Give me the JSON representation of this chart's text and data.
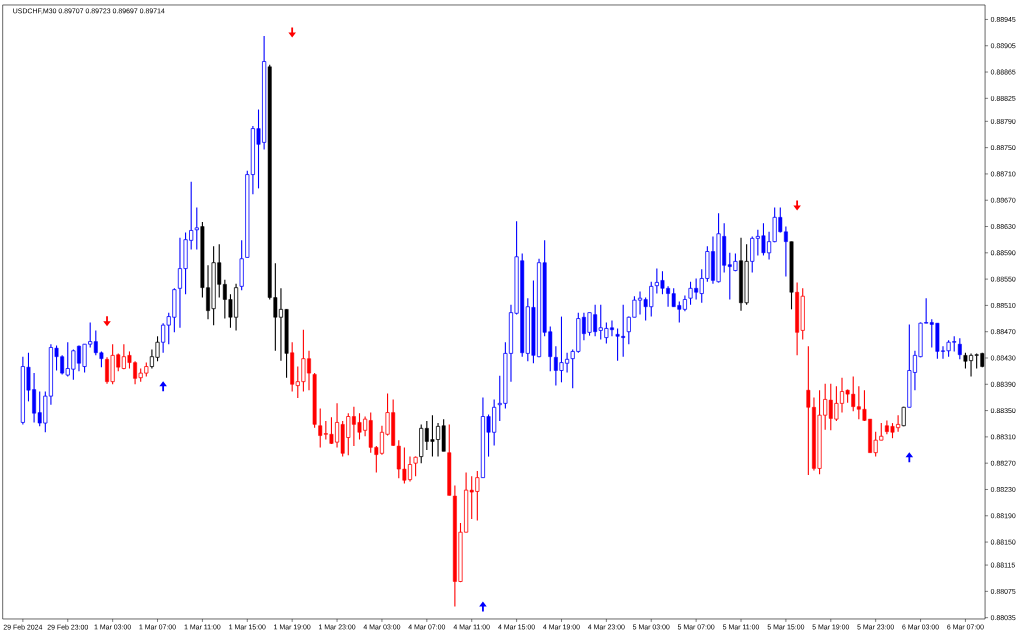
{
  "chart_data": {
    "type": "candlestick",
    "title": "USDCHF,M30  0.89707 0.89723 0.89697 0.89714",
    "categories": [
      "29 Feb 2024",
      null,
      null,
      null,
      null,
      null,
      null,
      null,
      "29 Feb 23:00",
      null,
      null,
      null,
      null,
      null,
      null,
      null,
      "1 Mar 03:00",
      null,
      null,
      null,
      null,
      null,
      null,
      null,
      "1 Mar 07:00",
      null,
      null,
      null,
      null,
      null,
      null,
      null,
      "1 Mar 11:00",
      null,
      null,
      null,
      null,
      null,
      null,
      null,
      "1 Mar 15:00",
      null,
      null,
      null,
      null,
      null,
      null,
      null,
      "1 Mar 19:00",
      null,
      null,
      null,
      null,
      null,
      null,
      null,
      "1 Mar 23:00",
      null,
      null,
      null,
      null,
      null,
      null,
      null,
      "4 Mar 03:00",
      null,
      null,
      null,
      null,
      null,
      null,
      null,
      "4 Mar 07:00",
      null,
      null,
      null,
      null,
      null,
      null,
      null,
      "4 Mar 11:00",
      null,
      null,
      null,
      null,
      null,
      null,
      null,
      "4 Mar 15:00",
      null,
      null,
      null,
      null,
      null,
      null,
      null,
      "4 Mar 19:00",
      null,
      null,
      null,
      null,
      null,
      null,
      null,
      "4 Mar 23:00",
      null,
      null,
      null,
      null,
      null,
      null,
      null,
      "5 Mar 03:00",
      null,
      null,
      null,
      null,
      null,
      null,
      null,
      "5 Mar 07:00",
      null,
      null,
      null,
      null,
      null,
      null,
      null,
      "5 Mar 11:00",
      null,
      null,
      null,
      null,
      null,
      null,
      null,
      "5 Mar 15:00",
      null,
      null,
      null,
      null,
      null,
      null,
      null,
      "5 Mar 19:00",
      null,
      null,
      null,
      null,
      null,
      null,
      null,
      "5 Mar 23:00",
      null,
      null,
      null,
      null,
      null,
      null,
      null,
      "6 Mar 03:00",
      null,
      null,
      null,
      null,
      null,
      null,
      null,
      "6 Mar 07:00",
      null,
      null,
      null
    ],
    "ohlc": [
      [
        0.88332,
        0.88432,
        0.88329,
        0.88417
      ],
      [
        0.88416,
        0.88438,
        0.88364,
        0.88381
      ],
      [
        0.88382,
        0.88407,
        0.88332,
        0.88346
      ],
      [
        0.88347,
        0.88379,
        0.88326,
        0.88331
      ],
      [
        0.88331,
        0.88379,
        0.88317,
        0.88372
      ],
      [
        0.88372,
        0.88451,
        0.88359,
        0.88446
      ],
      [
        0.88445,
        0.88449,
        0.88411,
        0.88432
      ],
      [
        0.88432,
        0.88434,
        0.88405,
        0.88407
      ],
      [
        0.88404,
        0.88454,
        0.88402,
        0.88414
      ],
      [
        0.88413,
        0.88443,
        0.88397,
        0.88441
      ],
      [
        0.88448,
        0.88449,
        0.8841,
        0.88422
      ],
      [
        0.88417,
        0.88451,
        0.88408,
        0.88451
      ],
      [
        0.88451,
        0.88484,
        0.88446,
        0.88455
      ],
      [
        0.88455,
        0.88472,
        0.88434,
        0.88438
      ],
      [
        0.88438,
        0.8844,
        0.88416,
        0.88429
      ],
      [
        0.88428,
        0.88431,
        0.88391,
        0.88394
      ],
      [
        0.88394,
        0.88451,
        0.8839,
        0.88434
      ],
      [
        0.88435,
        0.88437,
        0.8841,
        0.88416
      ],
      [
        0.88414,
        0.88451,
        0.88413,
        0.88432
      ],
      [
        0.88434,
        0.8844,
        0.88414,
        0.88423
      ],
      [
        0.88423,
        0.88425,
        0.8839,
        0.88399
      ],
      [
        0.884,
        0.88414,
        0.88394,
        0.88407
      ],
      [
        0.88407,
        0.88423,
        0.88402,
        0.88417
      ],
      [
        0.88417,
        0.88443,
        0.88414,
        0.88432
      ],
      [
        0.88431,
        0.88463,
        0.88425,
        0.88454
      ],
      [
        0.88454,
        0.88483,
        0.88438,
        0.8848
      ],
      [
        0.8848,
        0.88499,
        0.88451,
        0.88493
      ],
      [
        0.88492,
        0.88536,
        0.88469,
        0.88534
      ],
      [
        0.88536,
        0.88613,
        0.88476,
        0.88566
      ],
      [
        0.88566,
        0.88621,
        0.88527,
        0.8861
      ],
      [
        0.88609,
        0.88698,
        0.88595,
        0.88624
      ],
      [
        0.88625,
        0.88659,
        0.88595,
        0.88628
      ],
      [
        0.8863,
        0.88637,
        0.88522,
        0.88537
      ],
      [
        0.88537,
        0.88571,
        0.88489,
        0.88502
      ],
      [
        0.88505,
        0.886,
        0.8848,
        0.88575
      ],
      [
        0.88575,
        0.88603,
        0.88522,
        0.88542
      ],
      [
        0.88542,
        0.88549,
        0.8849,
        0.88519
      ],
      [
        0.88519,
        0.88527,
        0.88476,
        0.88492
      ],
      [
        0.88492,
        0.88543,
        0.88472,
        0.88537
      ],
      [
        0.88539,
        0.88609,
        0.88533,
        0.88581
      ],
      [
        0.88583,
        0.88715,
        0.88583,
        0.88709
      ],
      [
        0.88709,
        0.88783,
        0.88679,
        0.88779
      ],
      [
        0.88779,
        0.88808,
        0.88688,
        0.88755
      ],
      [
        0.88758,
        0.8892,
        0.88747,
        0.88881
      ],
      [
        0.88873,
        0.88876,
        0.88519,
        0.88522
      ],
      [
        0.88522,
        0.88574,
        0.88441,
        0.88492
      ],
      [
        0.88492,
        0.88536,
        0.88426,
        0.88504
      ],
      [
        0.88504,
        0.88504,
        0.884,
        0.88437
      ],
      [
        0.88438,
        0.88454,
        0.88379,
        0.8839
      ],
      [
        0.88388,
        0.88417,
        0.88369,
        0.88394
      ],
      [
        0.88394,
        0.88473,
        0.88379,
        0.88429
      ],
      [
        0.88429,
        0.88441,
        0.88381,
        0.88407
      ],
      [
        0.88405,
        0.88407,
        0.88324,
        0.88329
      ],
      [
        0.88327,
        0.88353,
        0.88294,
        0.88312
      ],
      [
        0.88314,
        0.88334,
        0.88306,
        0.88315
      ],
      [
        0.88314,
        0.8834,
        0.88299,
        0.883
      ],
      [
        0.88302,
        0.88361,
        0.88294,
        0.88332
      ],
      [
        0.88329,
        0.88334,
        0.8828,
        0.88285
      ],
      [
        0.88309,
        0.88346,
        0.88282,
        0.88341
      ],
      [
        0.88341,
        0.88356,
        0.88296,
        0.88329
      ],
      [
        0.88332,
        0.88346,
        0.88306,
        0.88317
      ],
      [
        0.8832,
        0.88341,
        0.88311,
        0.88337
      ],
      [
        0.88335,
        0.88347,
        0.88286,
        0.88294
      ],
      [
        0.88294,
        0.88296,
        0.88256,
        0.88283
      ],
      [
        0.88285,
        0.88327,
        0.88283,
        0.88317
      ],
      [
        0.88314,
        0.88376,
        0.88312,
        0.88347
      ],
      [
        0.88347,
        0.88367,
        0.88296,
        0.88297
      ],
      [
        0.88296,
        0.88305,
        0.88247,
        0.88261
      ],
      [
        0.88261,
        0.88294,
        0.88239,
        0.88244
      ],
      [
        0.88245,
        0.8828,
        0.88242,
        0.88268
      ],
      [
        0.8827,
        0.8828,
        0.8825,
        0.88279
      ],
      [
        0.8828,
        0.88329,
        0.8827,
        0.88323
      ],
      [
        0.88323,
        0.88334,
        0.8829,
        0.88303
      ],
      [
        0.88306,
        0.88343,
        0.8828,
        0.88303
      ],
      [
        0.88306,
        0.88331,
        0.8828,
        0.88326
      ],
      [
        0.88327,
        0.88337,
        0.88288,
        0.88288
      ],
      [
        0.88286,
        0.88329,
        0.88221,
        0.88221
      ],
      [
        0.8822,
        0.88236,
        0.88052,
        0.8809
      ],
      [
        0.8809,
        0.88179,
        0.88089,
        0.88165
      ],
      [
        0.88165,
        0.88256,
        0.88165,
        0.88229
      ],
      [
        0.88229,
        0.8825,
        0.88185,
        0.88226
      ],
      [
        0.88227,
        0.88258,
        0.88183,
        0.88248
      ],
      [
        0.88248,
        0.8837,
        0.88248,
        0.88341
      ],
      [
        0.88341,
        0.88344,
        0.8828,
        0.88317
      ],
      [
        0.88317,
        0.88367,
        0.88297,
        0.88355
      ],
      [
        0.88359,
        0.88403,
        0.88334,
        0.88361
      ],
      [
        0.88361,
        0.88454,
        0.88353,
        0.88437
      ],
      [
        0.88437,
        0.88511,
        0.88394,
        0.88499
      ],
      [
        0.88498,
        0.88638,
        0.88496,
        0.88584
      ],
      [
        0.88578,
        0.88589,
        0.88432,
        0.88438
      ],
      [
        0.88437,
        0.88521,
        0.88425,
        0.88508
      ],
      [
        0.88507,
        0.88548,
        0.88422,
        0.88434
      ],
      [
        0.88432,
        0.88581,
        0.88431,
        0.88575
      ],
      [
        0.88575,
        0.88609,
        0.88463,
        0.88469
      ],
      [
        0.8847,
        0.88478,
        0.8841,
        0.88432
      ],
      [
        0.88431,
        0.88448,
        0.88388,
        0.88411
      ],
      [
        0.88411,
        0.88493,
        0.88393,
        0.88423
      ],
      [
        0.88422,
        0.88438,
        0.88408,
        0.88428
      ],
      [
        0.88429,
        0.88443,
        0.88384,
        0.8844
      ],
      [
        0.8844,
        0.88499,
        0.88438,
        0.8849
      ],
      [
        0.88492,
        0.88499,
        0.88457,
        0.88467
      ],
      [
        0.88469,
        0.88499,
        0.88464,
        0.88499
      ],
      [
        0.88496,
        0.88511,
        0.88463,
        0.8847
      ],
      [
        0.88472,
        0.88511,
        0.88458,
        0.88476
      ],
      [
        0.88461,
        0.88484,
        0.88452,
        0.88475
      ],
      [
        0.88476,
        0.88487,
        0.88463,
        0.88473
      ],
      [
        0.88466,
        0.88475,
        0.88426,
        0.88463
      ],
      [
        0.88463,
        0.88511,
        0.88432,
        0.88461
      ],
      [
        0.8847,
        0.88493,
        0.88451,
        0.88492
      ],
      [
        0.88492,
        0.88524,
        0.88492,
        0.88518
      ],
      [
        0.88518,
        0.88531,
        0.88496,
        0.88521
      ],
      [
        0.88519,
        0.88522,
        0.88487,
        0.88508
      ],
      [
        0.88508,
        0.88546,
        0.88493,
        0.88539
      ],
      [
        0.8854,
        0.88566,
        0.88528,
        0.88545
      ],
      [
        0.88548,
        0.88562,
        0.88527,
        0.88536
      ],
      [
        0.88536,
        0.88539,
        0.88508,
        0.88528
      ],
      [
        0.88528,
        0.88536,
        0.88508,
        0.88508
      ],
      [
        0.8851,
        0.88516,
        0.88484,
        0.88504
      ],
      [
        0.88504,
        0.88525,
        0.88501,
        0.88519
      ],
      [
        0.88521,
        0.88546,
        0.88511,
        0.88536
      ],
      [
        0.88536,
        0.88551,
        0.88519,
        0.8853
      ],
      [
        0.88528,
        0.88565,
        0.88514,
        0.88551
      ],
      [
        0.88551,
        0.886,
        0.88546,
        0.88592
      ],
      [
        0.88592,
        0.88615,
        0.88543,
        0.88548
      ],
      [
        0.88546,
        0.8865,
        0.88545,
        0.88619
      ],
      [
        0.88615,
        0.88635,
        0.8856,
        0.88571
      ],
      [
        0.88572,
        0.8859,
        0.88519,
        0.88569
      ],
      [
        0.88563,
        0.88589,
        0.88562,
        0.88577
      ],
      [
        0.88578,
        0.88613,
        0.88502,
        0.88514
      ],
      [
        0.88514,
        0.88603,
        0.88511,
        0.88577
      ],
      [
        0.88577,
        0.88615,
        0.8856,
        0.88612
      ],
      [
        0.88612,
        0.88625,
        0.88586,
        0.88615
      ],
      [
        0.88616,
        0.88635,
        0.88586,
        0.8859
      ],
      [
        0.8859,
        0.88622,
        0.8858,
        0.88607
      ],
      [
        0.88607,
        0.88659,
        0.88606,
        0.88644
      ],
      [
        0.88644,
        0.88659,
        0.88621,
        0.88622
      ],
      [
        0.88622,
        0.8863,
        0.88554,
        0.88607
      ],
      [
        0.88607,
        0.88607,
        0.88504,
        0.8853
      ],
      [
        0.8853,
        0.88545,
        0.88434,
        0.88469
      ],
      [
        0.88472,
        0.88536,
        0.88458,
        0.88524
      ],
      [
        0.88381,
        0.88448,
        0.88252,
        0.88355
      ],
      [
        0.88355,
        0.8837,
        0.88259,
        0.88262
      ],
      [
        0.88262,
        0.88381,
        0.88253,
        0.88343
      ],
      [
        0.88343,
        0.88391,
        0.88321,
        0.88367
      ],
      [
        0.88366,
        0.88391,
        0.8832,
        0.88338
      ],
      [
        0.88337,
        0.88387,
        0.88334,
        0.88361
      ],
      [
        0.88361,
        0.884,
        0.88347,
        0.88379
      ],
      [
        0.88381,
        0.88382,
        0.88362,
        0.88375
      ],
      [
        0.88375,
        0.88402,
        0.88349,
        0.88356
      ],
      [
        0.88356,
        0.88387,
        0.88337,
        0.88352
      ],
      [
        0.88352,
        0.88381,
        0.88334,
        0.88335
      ],
      [
        0.88337,
        0.88337,
        0.88286,
        0.88286
      ],
      [
        0.88286,
        0.88318,
        0.8828,
        0.88305
      ],
      [
        0.88305,
        0.88331,
        0.88305,
        0.88311
      ],
      [
        0.88327,
        0.88335,
        0.88314,
        0.88318
      ],
      [
        0.88326,
        0.88331,
        0.88308,
        0.88317
      ],
      [
        0.88324,
        0.88343,
        0.88318,
        0.88329
      ],
      [
        0.88327,
        0.88356,
        0.88326,
        0.88355
      ],
      [
        0.88355,
        0.88481,
        0.88355,
        0.88411
      ],
      [
        0.88408,
        0.88441,
        0.88381,
        0.88434
      ],
      [
        0.88432,
        0.88484,
        0.88431,
        0.88483
      ],
      [
        0.88483,
        0.88521,
        0.88483,
        0.88484
      ],
      [
        0.88484,
        0.88489,
        0.88446,
        0.88481
      ],
      [
        0.88483,
        0.88483,
        0.88429,
        0.8844
      ],
      [
        0.88441,
        0.88448,
        0.88429,
        0.8844
      ],
      [
        0.88441,
        0.88457,
        0.88432,
        0.88454
      ],
      [
        0.88454,
        0.88463,
        0.8844,
        0.88455
      ],
      [
        0.88451,
        0.8846,
        0.88428,
        0.88435
      ],
      [
        0.88434,
        0.88438,
        0.88414,
        0.88425
      ],
      [
        0.88426,
        0.88437,
        0.88402,
        0.88434
      ],
      [
        0.88434,
        0.88437,
        0.88414,
        0.88435
      ],
      [
        0.88437,
        0.88438,
        0.88416,
        0.88417
      ]
    ],
    "colors": [
      "#0000ff",
      "#0000ff",
      "#0000ff",
      "#0000ff",
      "#0000ff",
      "#0000ff",
      "#0000ff",
      "#0000ff",
      "#0000ff",
      "#0000ff",
      "#0000ff",
      "#0000ff",
      "#0000ff",
      "#0000ff",
      "#0000ff",
      "#ff0000",
      "#ff0000",
      "#ff0000",
      "#ff0000",
      "#ff0000",
      "#ff0000",
      "#ff0000",
      "#ff0000",
      "#000000",
      "#000000",
      "#0000ff",
      "#0000ff",
      "#0000ff",
      "#0000ff",
      "#0000ff",
      "#0000ff",
      "#0000ff",
      "#000000",
      "#000000",
      "#000000",
      "#000000",
      "#000000",
      "#000000",
      "#000000",
      "#0000ff",
      "#0000ff",
      "#0000ff",
      "#0000ff",
      "#0000ff",
      "#000000",
      "#000000",
      "#000000",
      "#000000",
      "#ff0000",
      "#ff0000",
      "#ff0000",
      "#ff0000",
      "#ff0000",
      "#ff0000",
      "#ff0000",
      "#ff0000",
      "#ff0000",
      "#ff0000",
      "#ff0000",
      "#ff0000",
      "#ff0000",
      "#ff0000",
      "#ff0000",
      "#ff0000",
      "#ff0000",
      "#ff0000",
      "#ff0000",
      "#ff0000",
      "#ff0000",
      "#ff0000",
      "#ff0000",
      "#000000",
      "#000000",
      "#000000",
      "#000000",
      "#000000",
      "#ff0000",
      "#ff0000",
      "#ff0000",
      "#ff0000",
      "#ff0000",
      "#ff0000",
      "#0000ff",
      "#0000ff",
      "#0000ff",
      "#0000ff",
      "#0000ff",
      "#0000ff",
      "#0000ff",
      "#0000ff",
      "#0000ff",
      "#0000ff",
      "#0000ff",
      "#0000ff",
      "#0000ff",
      "#0000ff",
      "#0000ff",
      "#0000ff",
      "#0000ff",
      "#0000ff",
      "#0000ff",
      "#0000ff",
      "#0000ff",
      "#0000ff",
      "#0000ff",
      "#0000ff",
      "#0000ff",
      "#0000ff",
      "#0000ff",
      "#0000ff",
      "#0000ff",
      "#0000ff",
      "#0000ff",
      "#0000ff",
      "#0000ff",
      "#0000ff",
      "#0000ff",
      "#0000ff",
      "#0000ff",
      "#0000ff",
      "#0000ff",
      "#0000ff",
      "#0000ff",
      "#0000ff",
      "#0000ff",
      "#0000ff",
      "#0000ff",
      "#0000ff",
      "#000000",
      "#000000",
      "#0000ff",
      "#0000ff",
      "#0000ff",
      "#0000ff",
      "#0000ff",
      "#0000ff",
      "#0000ff",
      "#000000",
      "#ff0000",
      "#ff0000",
      "#ff0000",
      "#ff0000",
      "#ff0000",
      "#ff0000",
      "#ff0000",
      "#ff0000",
      "#ff0000",
      "#ff0000",
      "#ff0000",
      "#ff0000",
      "#ff0000",
      "#ff0000",
      "#ff0000",
      "#ff0000",
      "#ff0000",
      "#ff0000",
      "#ff0000",
      "#000000",
      "#0000ff",
      "#0000ff",
      "#0000ff",
      "#0000ff",
      "#0000ff",
      "#0000ff",
      "#0000ff",
      "#0000ff",
      "#0000ff",
      "#0000ff",
      "#000000",
      "#000000",
      "#000000",
      "#000000"
    ],
    "series": [
      {
        "type": "scatter",
        "color": "#ff0000",
        "values": [
          null,
          null,
          null,
          null,
          null,
          null,
          null,
          null,
          null,
          null,
          null,
          null,
          null,
          null,
          null,
          0.88486,
          null,
          null,
          null,
          null,
          null,
          null,
          null,
          null,
          null,
          null,
          null,
          null,
          null,
          null,
          null,
          null,
          null,
          null,
          null,
          null,
          null,
          null,
          null,
          null,
          null,
          null,
          null,
          null,
          null,
          null,
          null,
          null,
          0.88925,
          null,
          null,
          null,
          null,
          null,
          null,
          null,
          null,
          null,
          null,
          null,
          null,
          null,
          null,
          null,
          null,
          null,
          null,
          null,
          null,
          null,
          null,
          null,
          null,
          null,
          null,
          null,
          null,
          null,
          null,
          null,
          null,
          null,
          null,
          null,
          null,
          null,
          null,
          null,
          null,
          null,
          null,
          null,
          null,
          null,
          null,
          null,
          null,
          null,
          null,
          null,
          null,
          null,
          null,
          null,
          null,
          null,
          null,
          null,
          null,
          null,
          null,
          null,
          null,
          null,
          null,
          null,
          null,
          null,
          null,
          null,
          null,
          null,
          null,
          null,
          null,
          null,
          null,
          null,
          null,
          null,
          null,
          null,
          null,
          null,
          null,
          null,
          null,
          null,
          0.88662,
          null,
          null,
          null,
          null,
          null,
          null,
          null,
          null,
          null,
          null,
          null,
          null,
          null,
          null,
          null,
          null,
          null,
          null,
          null,
          null,
          null,
          null,
          null,
          null,
          null,
          null,
          null,
          null,
          null,
          null,
          null,
          null,
          null
        ]
      },
      {
        "type": "scatter",
        "color": "#0000ff",
        "values": [
          null,
          null,
          null,
          null,
          null,
          null,
          null,
          null,
          null,
          null,
          null,
          null,
          null,
          null,
          null,
          null,
          null,
          null,
          null,
          null,
          null,
          null,
          null,
          null,
          null,
          0.88387,
          null,
          null,
          null,
          null,
          null,
          null,
          null,
          null,
          null,
          null,
          null,
          null,
          null,
          null,
          null,
          null,
          null,
          null,
          null,
          null,
          null,
          null,
          null,
          null,
          null,
          null,
          null,
          null,
          null,
          null,
          null,
          null,
          null,
          null,
          null,
          null,
          null,
          null,
          null,
          null,
          null,
          null,
          null,
          null,
          null,
          null,
          null,
          null,
          null,
          null,
          null,
          null,
          null,
          null,
          null,
          null,
          0.88052,
          null,
          null,
          null,
          null,
          null,
          null,
          null,
          null,
          null,
          null,
          null,
          null,
          null,
          null,
          null,
          null,
          null,
          null,
          null,
          null,
          null,
          null,
          null,
          null,
          null,
          null,
          null,
          null,
          null,
          null,
          null,
          null,
          null,
          null,
          null,
          null,
          null,
          null,
          null,
          null,
          null,
          null,
          null,
          null,
          null,
          null,
          null,
          null,
          null,
          null,
          null,
          null,
          null,
          null,
          null,
          null,
          null,
          null,
          null,
          null,
          null,
          null,
          null,
          null,
          null,
          null,
          null,
          null,
          null,
          null,
          null,
          null,
          null,
          null,
          null,
          0.88279,
          null,
          null,
          null,
          null,
          null,
          null,
          null,
          null,
          null,
          null,
          null,
          null,
          null
        ]
      }
    ],
    "ylim": [
      0.88033,
      0.88967
    ],
    "yticks": [
      {
        "value": 0.88945,
        "label": "0.88945"
      },
      {
        "value": 0.88905,
        "label": "0.88905"
      },
      {
        "value": 0.88865,
        "label": "0.88865"
      },
      {
        "value": 0.88825,
        "label": "0.88825"
      },
      {
        "value": 0.8879,
        "label": "0.88790"
      },
      {
        "value": 0.8875,
        "label": "0.88750"
      },
      {
        "value": 0.8871,
        "label": "0.88710"
      },
      {
        "value": 0.8867,
        "label": "0.88670"
      },
      {
        "value": 0.8863,
        "label": "0.88630"
      },
      {
        "value": 0.8859,
        "label": "0.88590"
      },
      {
        "value": 0.8855,
        "label": "0.88550"
      },
      {
        "value": 0.8851,
        "label": "0.88510"
      },
      {
        "value": 0.8847,
        "label": "0.88470"
      },
      {
        "value": 0.8843,
        "label": "0.88430"
      },
      {
        "value": 0.8839,
        "label": "0.88390"
      },
      {
        "value": 0.8835,
        "label": "0.88350"
      },
      {
        "value": 0.8831,
        "label": "0.88310"
      },
      {
        "value": 0.8827,
        "label": "0.88270"
      },
      {
        "value": 0.8823,
        "label": "0.88230"
      },
      {
        "value": 0.8819,
        "label": "0.88190"
      },
      {
        "value": 0.8815,
        "label": "0.88150"
      },
      {
        "value": 0.88115,
        "label": "0.88115"
      },
      {
        "value": 0.88075,
        "label": "0.88075"
      },
      {
        "value": 0.88035,
        "label": "0.88035"
      }
    ]
  }
}
